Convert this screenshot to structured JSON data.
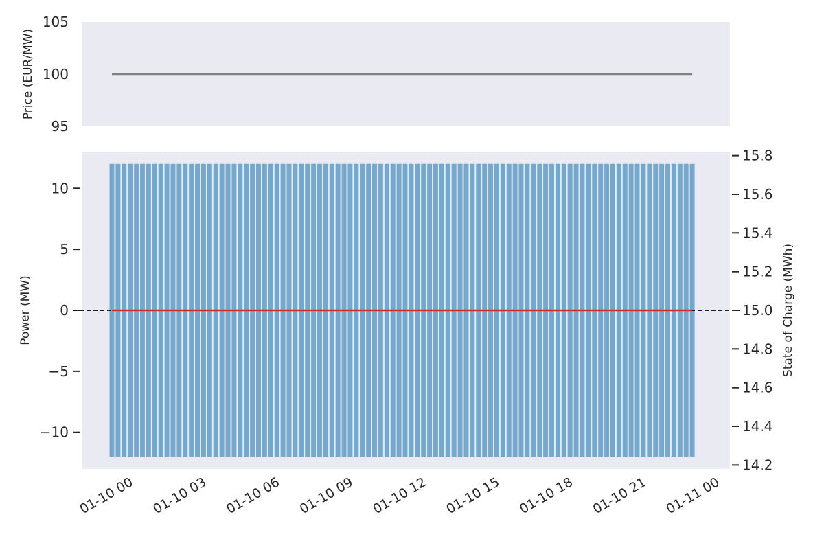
{
  "chart_data": [
    {
      "type": "line",
      "title": "",
      "ylabel": "Price (EUR/MW)",
      "ylim": [
        95,
        105
      ],
      "yticks": [
        95,
        100,
        105
      ],
      "series": [
        {
          "x_start": "01-10 00:00",
          "x_end": "01-10 23:45",
          "value": 100,
          "color": "#808080"
        }
      ],
      "grid": false
    },
    {
      "type": "bar",
      "title": "",
      "xlabel": "",
      "ylabel": "Power (MW)",
      "ylim": [
        -13,
        13
      ],
      "yticks": [
        -10,
        -5,
        0,
        5,
        10
      ],
      "ytick_labels": [
        "−10",
        "−5",
        "0",
        "5",
        "10"
      ],
      "bar_interval": "15 min",
      "bar_count": 96,
      "bar_upper": 12,
      "bar_lower": -12,
      "bar_color": "#74a9cf",
      "zero_line": {
        "value": 0,
        "style": "dashed",
        "color": "#000000"
      },
      "secondary_axis": {
        "ylabel": "State of Charge (MWh)",
        "ylim": [
          14.18,
          15.82
        ],
        "yticks": [
          14.2,
          14.4,
          14.6,
          14.8,
          15.0,
          15.2,
          15.4,
          15.6,
          15.8
        ],
        "ytick_labels": [
          "14.2",
          "14.4",
          "14.6",
          "14.8",
          "15.0",
          "15.2",
          "15.4",
          "15.6",
          "15.8"
        ],
        "series": [
          {
            "x_start": "01-10 00:00",
            "x_end": "01-10 23:45",
            "value": 15.0,
            "color": "#d62728"
          }
        ]
      },
      "xticks": [
        "01-10 00",
        "01-10 03",
        "01-10 06",
        "01-10 09",
        "01-10 12",
        "01-10 15",
        "01-10 18",
        "01-10 21",
        "01-11 00"
      ],
      "xtick_hours": [
        0,
        3,
        6,
        9,
        12,
        15,
        18,
        21,
        24
      ],
      "grid": false
    }
  ]
}
